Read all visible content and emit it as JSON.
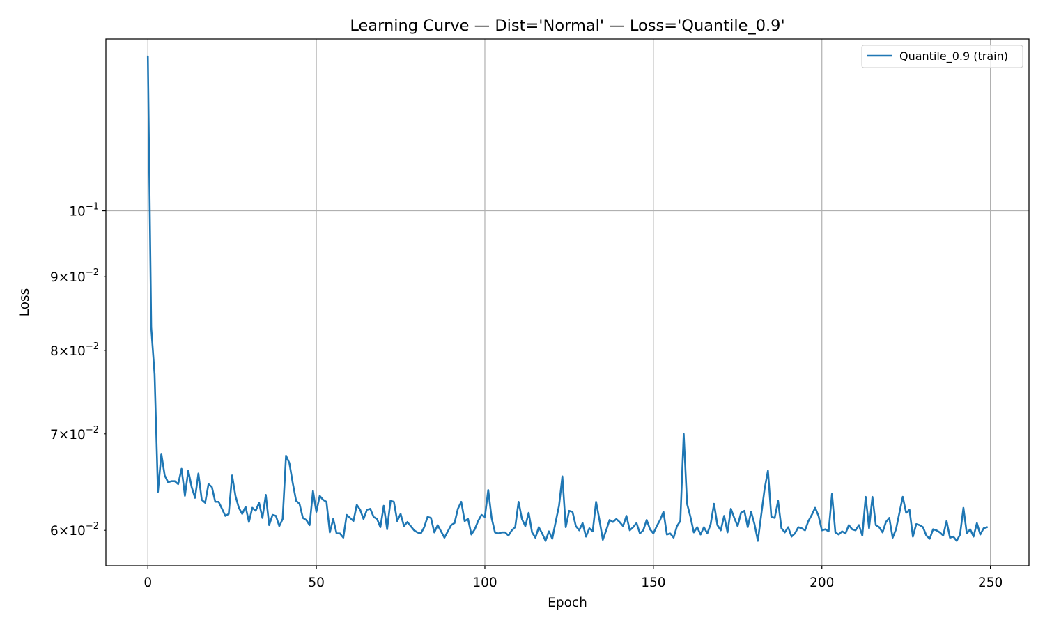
{
  "chart_data": {
    "type": "line",
    "title": "Learning Curve — Dist='Normal' — Loss='Quantile_0.9'",
    "xlabel": "Epoch",
    "ylabel": "Loss",
    "xlim": [
      -12.45,
      261.45
    ],
    "ylim": [
      0.0567,
      0.1316
    ],
    "yscale": "log",
    "grid": true,
    "legend_position": "top-right",
    "xticks": [
      {
        "value": 0,
        "label": "0"
      },
      {
        "value": 50,
        "label": "50"
      },
      {
        "value": 100,
        "label": "100"
      },
      {
        "value": 150,
        "label": "150"
      },
      {
        "value": 200,
        "label": "200"
      },
      {
        "value": 250,
        "label": "250"
      }
    ],
    "yticks": [
      {
        "value": 0.06,
        "mantissa": "6",
        "exponent": "−2",
        "label": "6 × 10^−2"
      },
      {
        "value": 0.07,
        "mantissa": "7",
        "exponent": "−2",
        "label": "7 × 10^−2"
      },
      {
        "value": 0.08,
        "mantissa": "8",
        "exponent": "−2",
        "label": "8 × 10^−2"
      },
      {
        "value": 0.09,
        "mantissa": "9",
        "exponent": "−2",
        "label": "9 × 10^−2"
      },
      {
        "value": 0.1,
        "mantissa": "",
        "exponent": "−1",
        "label": "10^−1"
      }
    ],
    "series": [
      {
        "name": "Quantile_0.9 (train)",
        "color": "#1f77b4",
        "x_start": 0,
        "x_step": 1,
        "values": [
          0.128,
          0.083,
          0.077,
          0.0638,
          0.0678,
          0.0655,
          0.0648,
          0.0649,
          0.0649,
          0.0646,
          0.0662,
          0.0634,
          0.066,
          0.0643,
          0.0632,
          0.0657,
          0.063,
          0.0627,
          0.0646,
          0.0643,
          0.0628,
          0.0628,
          0.0621,
          0.0614,
          0.0616,
          0.0655,
          0.0634,
          0.0622,
          0.0616,
          0.0623,
          0.0608,
          0.0622,
          0.0619,
          0.0627,
          0.0612,
          0.0635,
          0.0605,
          0.0615,
          0.0614,
          0.0604,
          0.0611,
          0.0676,
          0.0668,
          0.0647,
          0.0629,
          0.0626,
          0.0612,
          0.061,
          0.0605,
          0.0639,
          0.0618,
          0.0634,
          0.063,
          0.0628,
          0.0598,
          0.0611,
          0.0597,
          0.0597,
          0.0593,
          0.0615,
          0.0612,
          0.0609,
          0.0625,
          0.062,
          0.0611,
          0.062,
          0.0621,
          0.0613,
          0.0611,
          0.0603,
          0.0624,
          0.0601,
          0.0629,
          0.0628,
          0.0609,
          0.0616,
          0.0604,
          0.0608,
          0.0604,
          0.06,
          0.0598,
          0.0597,
          0.0603,
          0.0613,
          0.0612,
          0.0598,
          0.0605,
          0.0599,
          0.0593,
          0.0599,
          0.0605,
          0.0607,
          0.0621,
          0.0628,
          0.0609,
          0.0611,
          0.0596,
          0.0601,
          0.0609,
          0.0615,
          0.0613,
          0.064,
          0.0612,
          0.0598,
          0.0597,
          0.0598,
          0.0598,
          0.0595,
          0.06,
          0.0603,
          0.0628,
          0.0611,
          0.0604,
          0.0617,
          0.0598,
          0.0593,
          0.0603,
          0.0597,
          0.059,
          0.0599,
          0.0592,
          0.0608,
          0.0624,
          0.0654,
          0.0603,
          0.0619,
          0.0618,
          0.0604,
          0.06,
          0.0607,
          0.0594,
          0.0602,
          0.0599,
          0.0628,
          0.061,
          0.0591,
          0.06,
          0.061,
          0.0608,
          0.0611,
          0.0608,
          0.0604,
          0.0614,
          0.06,
          0.0603,
          0.0607,
          0.0597,
          0.06,
          0.061,
          0.0601,
          0.0597,
          0.0604,
          0.061,
          0.0618,
          0.0596,
          0.0597,
          0.0593,
          0.0604,
          0.0609,
          0.07,
          0.0626,
          0.0613,
          0.0598,
          0.0603,
          0.0596,
          0.0603,
          0.0597,
          0.0606,
          0.0626,
          0.0605,
          0.06,
          0.0614,
          0.0598,
          0.0621,
          0.0612,
          0.0604,
          0.0617,
          0.0619,
          0.0603,
          0.0618,
          0.0606,
          0.059,
          0.0615,
          0.0641,
          0.066,
          0.0613,
          0.0612,
          0.0629,
          0.0602,
          0.0598,
          0.0603,
          0.0594,
          0.0597,
          0.0603,
          0.0602,
          0.06,
          0.0609,
          0.0615,
          0.0622,
          0.0614,
          0.06,
          0.0601,
          0.0599,
          0.0636,
          0.0598,
          0.0596,
          0.0599,
          0.0597,
          0.0605,
          0.0601,
          0.06,
          0.0605,
          0.0595,
          0.0633,
          0.0602,
          0.0633,
          0.0605,
          0.0603,
          0.0598,
          0.0608,
          0.0612,
          0.0593,
          0.0601,
          0.0617,
          0.0633,
          0.0617,
          0.062,
          0.0594,
          0.0606,
          0.0605,
          0.0603,
          0.0595,
          0.0592,
          0.0601,
          0.06,
          0.0598,
          0.0595,
          0.0609,
          0.0593,
          0.0594,
          0.059,
          0.0596,
          0.0622,
          0.0597,
          0.0601,
          0.0594,
          0.0607,
          0.0596,
          0.0602,
          0.0603
        ]
      }
    ]
  }
}
